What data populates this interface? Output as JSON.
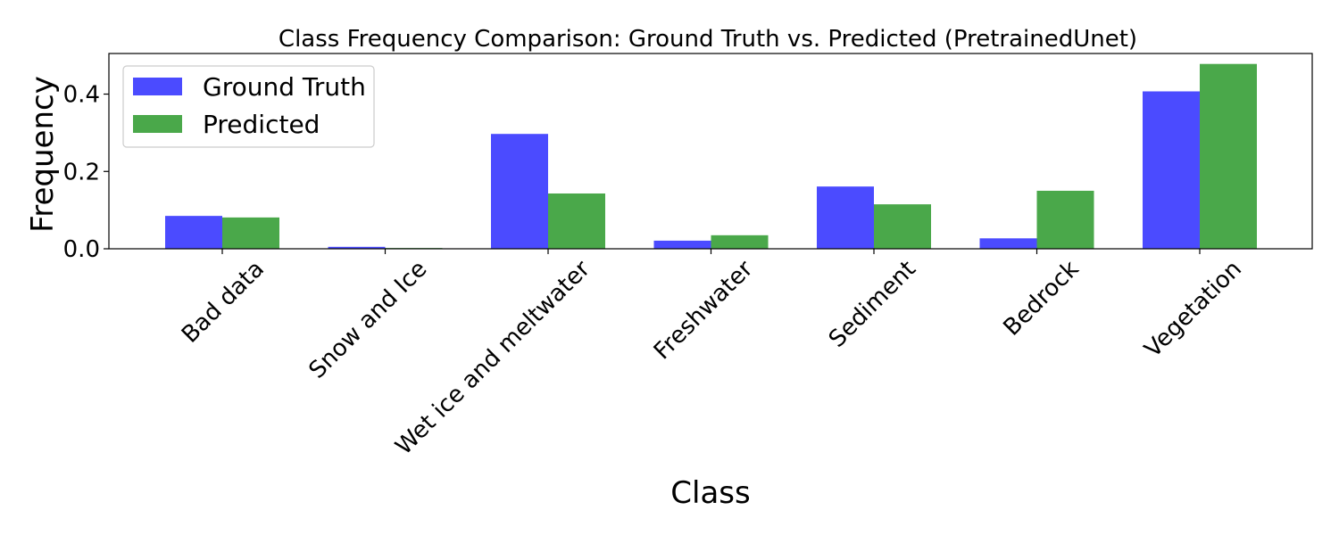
{
  "chart_data": {
    "type": "bar",
    "title": "Class Frequency Comparison: Ground Truth vs. Predicted (PretrainedUnet)",
    "xlabel": "Class",
    "ylabel": "Frequency",
    "categories": [
      "Bad data",
      "Snow and Ice",
      "Wet ice and meltwater",
      "Freshwater",
      "Sediment",
      "Bedrock",
      "Vegetation"
    ],
    "series": [
      {
        "name": "Ground Truth",
        "color": "#4b4bff",
        "values": [
          0.085,
          0.005,
          0.297,
          0.021,
          0.161,
          0.027,
          0.407
        ]
      },
      {
        "name": "Predicted",
        "color": "#4aa84a",
        "values": [
          0.081,
          0.002,
          0.143,
          0.035,
          0.115,
          0.15,
          0.478
        ]
      }
    ],
    "ylim": [
      0,
      0.505
    ],
    "yticks": [
      {
        "value": 0.0,
        "label": "0.0"
      },
      {
        "value": 0.2,
        "label": "0.2"
      },
      {
        "value": 0.4,
        "label": "0.4"
      }
    ],
    "legend_position": "top-left",
    "grid": false
  }
}
